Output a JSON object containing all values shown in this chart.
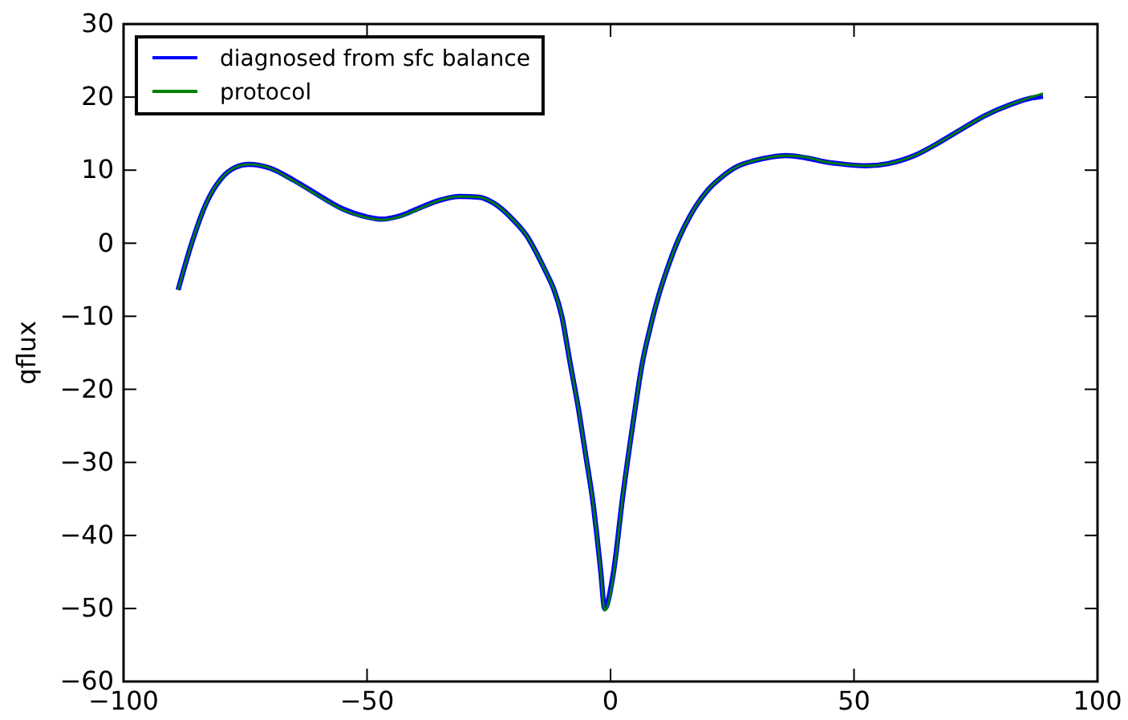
{
  "chart_data": {
    "type": "line",
    "ylabel": "qflux",
    "x": [
      -88.8,
      -86,
      -83,
      -80,
      -77,
      -74.3,
      -70,
      -65,
      -60,
      -55,
      -50,
      -47,
      -43,
      -39,
      -35,
      -31,
      -27,
      -24,
      -20,
      -17,
      -15,
      -13,
      -11.7,
      -10,
      -8.4,
      -6.5,
      -5.1,
      -3.5,
      -2.8,
      -2,
      -1.2,
      0.5,
      2.5,
      4.8,
      6.5,
      8.1,
      10,
      11.4,
      14,
      16.3,
      20,
      22.9,
      26,
      29.5,
      33,
      36,
      40,
      44.3,
      48,
      52.5,
      57,
      62.4,
      67,
      72.3,
      77,
      82.2,
      86,
      88.8
    ],
    "series": [
      {
        "name": "diagnosed from sfc balance",
        "color": "#0000ff",
        "values": [
          -6.4,
          0,
          5.5,
          8.8,
          10.4,
          10.8,
          10.3,
          8.6,
          6.6,
          4.7,
          3.6,
          3.3,
          3.8,
          4.9,
          5.9,
          6.4,
          6.3,
          5.5,
          3.2,
          0.8,
          -1.6,
          -4.3,
          -6.2,
          -10,
          -16,
          -23,
          -29,
          -36,
          -40,
          -45,
          -50,
          -45.5,
          -34.7,
          -23.8,
          -16.5,
          -11.7,
          -6.9,
          -4,
          0.6,
          3.7,
          7.3,
          9.1,
          10.5,
          11.3,
          11.8,
          12,
          11.7,
          11.1,
          10.8,
          10.6,
          10.9,
          12,
          13.6,
          15.7,
          17.5,
          19,
          19.8,
          20.1
        ]
      },
      {
        "name": "protocol",
        "color": "#008000",
        "values": [
          -6.4,
          0,
          5.5,
          8.8,
          10.4,
          10.8,
          10.3,
          8.5,
          6.5,
          4.6,
          3.5,
          3.2,
          3.7,
          4.8,
          5.9,
          6.4,
          6.3,
          5.5,
          3.2,
          0.8,
          -1.6,
          -4.3,
          -6.2,
          -10,
          -16,
          -23,
          -29,
          -36,
          -40,
          -45,
          -50.3,
          -46,
          -34.7,
          -23.8,
          -16.5,
          -11.7,
          -6.9,
          -4,
          0.6,
          3.7,
          7.3,
          9.1,
          10.5,
          11.3,
          11.8,
          12,
          11.8,
          11.1,
          10.8,
          10.6,
          10.9,
          12,
          13.6,
          15.7,
          17.5,
          19,
          19.9,
          20.5
        ]
      }
    ],
    "xlim": [
      -100,
      100
    ],
    "xticks": [
      {
        "value": -100,
        "label": "−100"
      },
      {
        "value": -50,
        "label": "−50"
      },
      0,
      50,
      100
    ],
    "ylim": [
      -60,
      30
    ],
    "yticks": [
      {
        "value": -60,
        "label": "−60"
      },
      {
        "value": -50,
        "label": "−50"
      },
      {
        "value": -40,
        "label": "−40"
      },
      {
        "value": -30,
        "label": "−30"
      },
      {
        "value": -20,
        "label": "−20"
      },
      {
        "value": -10,
        "label": "−10"
      },
      0,
      10,
      20,
      30
    ],
    "legend": "top left",
    "grid": false,
    "line_style": "solid",
    "marker": "none"
  }
}
